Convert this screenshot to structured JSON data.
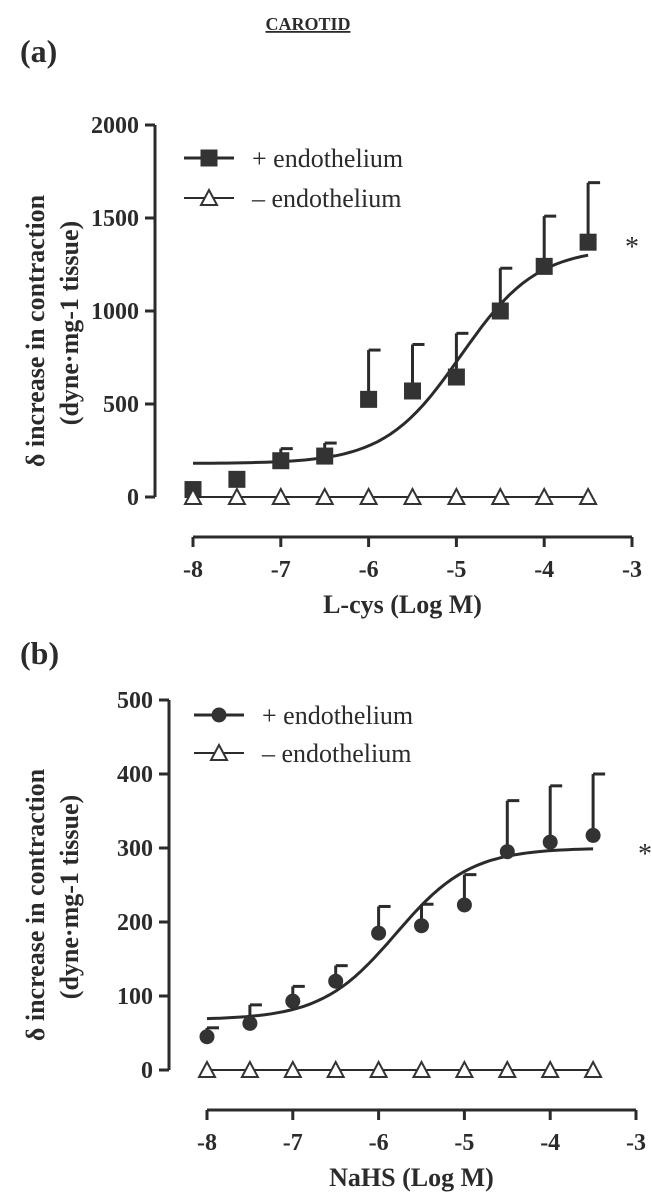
{
  "header": "CAROTID",
  "chart_data": [
    {
      "type": "scatter",
      "panel_label": "(a)",
      "title": "",
      "xlabel": "L-cys (Log M)",
      "ylabel_line1": "δ increase in contraction",
      "ylabel_line2": "(dyne·mg-1 tissue)",
      "xlim": [
        -8,
        -3
      ],
      "ylim": [
        0,
        2000
      ],
      "xticks": [
        -8,
        -7,
        -6,
        -5,
        -4,
        -3
      ],
      "yticks": [
        0,
        500,
        1000,
        1500,
        2000
      ],
      "legend_position": "top-left",
      "significance_marker": "*",
      "series": [
        {
          "name": "+ endothelium",
          "marker": "filled-square",
          "x": [
            -8,
            -7.5,
            -7,
            -6.5,
            -6,
            -5.5,
            -5,
            -4.5,
            -4,
            -3.5
          ],
          "y": [
            40,
            95,
            195,
            220,
            525,
            570,
            645,
            1000,
            1240,
            1370
          ],
          "error_upper": [
            40,
            95,
            260,
            290,
            790,
            820,
            880,
            1230,
            1510,
            1690
          ],
          "fit": {
            "model": "sigmoid",
            "bottom": 180,
            "top": 1340,
            "logEC50": -4.95,
            "hill": 1.0
          }
        },
        {
          "name": "– endothelium",
          "marker": "open-triangle",
          "x": [
            -8,
            -7.5,
            -7,
            -6.5,
            -6,
            -5.5,
            -5,
            -4.5,
            -4,
            -3.5
          ],
          "y": [
            0,
            0,
            0,
            0,
            0,
            0,
            0,
            0,
            0,
            0
          ],
          "fit": {
            "model": "flat",
            "value": 0
          }
        }
      ]
    },
    {
      "type": "scatter",
      "panel_label": "(b)",
      "title": "",
      "xlabel": "NaHS (Log M)",
      "ylabel_line1": "δ increase in contraction",
      "ylabel_line2": "(dyne·mg-1 tissue)",
      "xlim": [
        -8,
        -3
      ],
      "ylim": [
        0,
        500
      ],
      "xticks": [
        -8,
        -7,
        -6,
        -5,
        -4,
        -3
      ],
      "yticks": [
        0,
        100,
        200,
        300,
        400,
        500
      ],
      "legend_position": "top-left",
      "significance_marker": "*",
      "series": [
        {
          "name": "+ endothelium",
          "marker": "filled-circle",
          "x": [
            -8,
            -7.5,
            -7,
            -6.5,
            -6,
            -5.5,
            -5,
            -4.5,
            -4,
            -3.5
          ],
          "y": [
            45,
            63,
            93,
            120,
            185,
            195,
            223,
            295,
            308,
            317
          ],
          "error_upper": [
            57,
            88,
            113,
            141,
            221,
            224,
            264,
            364,
            384,
            400
          ],
          "fit": {
            "model": "sigmoid",
            "bottom": 68,
            "top": 300,
            "logEC50": -5.8,
            "hill": 1.0
          }
        },
        {
          "name": "– endothelium",
          "marker": "open-triangle",
          "x": [
            -8,
            -7.5,
            -7,
            -6.5,
            -6,
            -5.5,
            -5,
            -4.5,
            -4,
            -3.5
          ],
          "y": [
            0,
            0,
            0,
            0,
            0,
            0,
            0,
            0,
            0,
            0
          ],
          "fit": {
            "model": "flat",
            "value": 0
          }
        }
      ]
    }
  ]
}
